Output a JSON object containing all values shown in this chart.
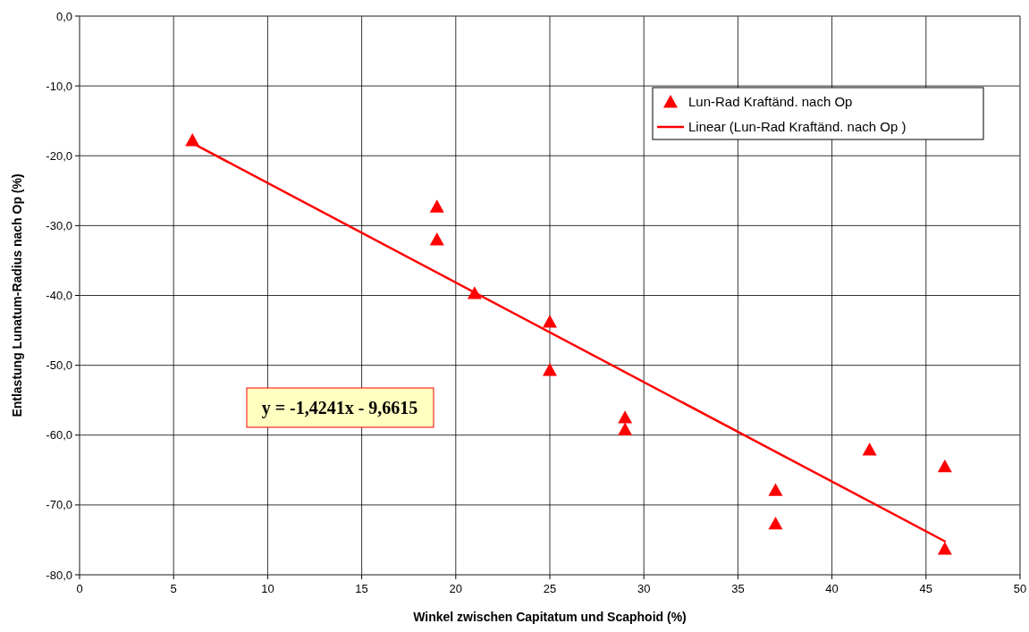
{
  "chart_data": {
    "type": "scatter",
    "xlabel": "Winkel zwischen Capitatum und Scaphoid (%)",
    "ylabel": "Entlastung Lunatum-Radius nach Op (%)",
    "xlim": [
      0,
      50
    ],
    "xticks": [
      0,
      5,
      10,
      15,
      20,
      25,
      30,
      35,
      40,
      45,
      50
    ],
    "ylim": [
      -80,
      0
    ],
    "yticks": [
      {
        "value": 0,
        "label": "0,0"
      },
      {
        "value": -10,
        "label": "-10,0"
      },
      {
        "value": -20,
        "label": "-20,0"
      },
      {
        "value": -30,
        "label": "-30,0"
      },
      {
        "value": -40,
        "label": "-40,0"
      },
      {
        "value": -50,
        "label": "-50,0"
      },
      {
        "value": -60,
        "label": "-60,0"
      },
      {
        "value": -70,
        "label": "-70,0"
      },
      {
        "value": -80,
        "label": "-80,0"
      }
    ],
    "grid": true,
    "legend": "top right",
    "marker": "triangle",
    "series": [
      {
        "name": "Lun-Rad Kraftänd. nach Op",
        "color": "#ff0000",
        "x": [
          6,
          19,
          19,
          21,
          25,
          25,
          29,
          29,
          37,
          37,
          42,
          46,
          46
        ],
        "values": [
          -17.8,
          -27.3,
          -32.0,
          -39.7,
          -43.8,
          -50.7,
          -57.5,
          -59.2,
          -67.9,
          -72.7,
          -62.1,
          -64.5,
          -76.3
        ]
      },
      {
        "name": "Linear (Lun-Rad Kraftänd. nach Op )",
        "type": "line",
        "color": "#ff0000",
        "marker": "none",
        "x": [
          6,
          46
        ],
        "values": [
          -18.2,
          -75.2
        ]
      }
    ],
    "annotations": [
      "y = -1,4241x - 9,6615"
    ]
  }
}
